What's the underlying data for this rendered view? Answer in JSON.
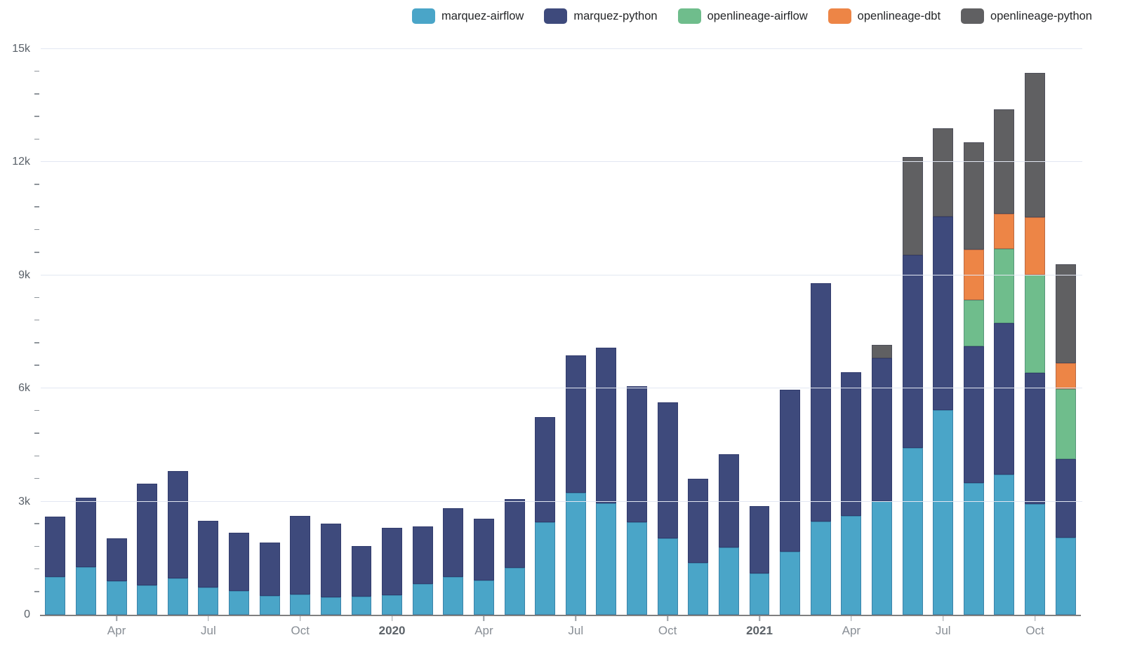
{
  "legend": {
    "position": "top-right",
    "items": [
      "marquez-airflow",
      "marquez-python",
      "openlineage-airflow",
      "openlineage-dbt",
      "openlineage-python"
    ]
  },
  "yaxis": {
    "labels": [
      "0",
      "3k",
      "6k",
      "9k",
      "12k",
      "15k"
    ],
    "values": [
      0,
      3000,
      6000,
      9000,
      12000,
      15000
    ],
    "max": 15000,
    "major_step": 3000,
    "minor_step": 600
  },
  "xaxis": {
    "ticks": [
      {
        "index": 2,
        "label": "Apr",
        "bold": false
      },
      {
        "index": 5,
        "label": "Jul",
        "bold": false
      },
      {
        "index": 8,
        "label": "Oct",
        "bold": false
      },
      {
        "index": 11,
        "label": "2020",
        "bold": true
      },
      {
        "index": 14,
        "label": "Apr",
        "bold": false
      },
      {
        "index": 17,
        "label": "Jul",
        "bold": false
      },
      {
        "index": 20,
        "label": "Oct",
        "bold": false
      },
      {
        "index": 23,
        "label": "2021",
        "bold": true
      },
      {
        "index": 26,
        "label": "Apr",
        "bold": false
      },
      {
        "index": 29,
        "label": "Jul",
        "bold": false
      },
      {
        "index": 32,
        "label": "Oct",
        "bold": false
      }
    ]
  },
  "chart_data": {
    "type": "bar",
    "stacked": true,
    "grid": "horizontal-major",
    "legend_position": "top-right",
    "ylim": [
      0,
      15000
    ],
    "categories": [
      "Feb 2019",
      "Mar 2019",
      "Apr 2019",
      "May 2019",
      "Jun 2019",
      "Jul 2019",
      "Aug 2019",
      "Sep 2019",
      "Oct 2019",
      "Nov 2019",
      "Dec 2019",
      "Jan 2020",
      "Feb 2020",
      "Mar 2020",
      "Apr 2020",
      "May 2020",
      "Jun 2020",
      "Jul 2020",
      "Aug 2020",
      "Sep 2020",
      "Oct 2020",
      "Nov 2020",
      "Dec 2020",
      "Jan 2021",
      "Feb 2021",
      "Mar 2021",
      "Apr 2021",
      "May 2021",
      "Jun 2021",
      "Jul 2021",
      "Aug 2021",
      "Sep 2021",
      "Oct 2021",
      "Nov 2021"
    ],
    "series": [
      {
        "name": "marquez-airflow",
        "color": "#4aa5c8",
        "values": [
          1000,
          1270,
          900,
          790,
          970,
          720,
          640,
          500,
          540,
          470,
          490,
          520,
          820,
          1000,
          910,
          1240,
          2450,
          3230,
          2950,
          2450,
          2030,
          1370,
          1790,
          1090,
          1680,
          2470,
          2630,
          3010,
          4420,
          5430,
          3490,
          3715,
          2940,
          2050
        ]
      },
      {
        "name": "marquez-python",
        "color": "#3e4a7c",
        "values": [
          1600,
          1830,
          1120,
          2690,
          2840,
          1770,
          1540,
          1420,
          2090,
          1940,
          1330,
          1790,
          1515,
          1825,
          1645,
          1830,
          2795,
          3640,
          4125,
          3615,
          3600,
          2230,
          2460,
          1790,
          4295,
          6325,
          3810,
          3800,
          5120,
          5135,
          3630,
          4025,
          3465,
          2075
        ]
      },
      {
        "name": "openlineage-airflow",
        "color": "#6fbd8c",
        "values": [
          0,
          0,
          0,
          0,
          0,
          0,
          0,
          0,
          0,
          0,
          0,
          0,
          0,
          0,
          0,
          0,
          0,
          0,
          0,
          0,
          0,
          0,
          0,
          0,
          0,
          0,
          0,
          0,
          0,
          0,
          1225,
          1970,
          2610,
          1865
        ]
      },
      {
        "name": "openlineage-dbt",
        "color": "#ed8546",
        "values": [
          0,
          0,
          0,
          0,
          0,
          0,
          0,
          0,
          0,
          0,
          0,
          0,
          0,
          0,
          0,
          0,
          0,
          0,
          0,
          0,
          0,
          0,
          0,
          0,
          0,
          0,
          0,
          0,
          0,
          0,
          1345,
          930,
          1530,
          690
        ]
      },
      {
        "name": "openlineage-python",
        "color": "#606062",
        "values": [
          0,
          0,
          0,
          0,
          0,
          0,
          0,
          0,
          0,
          0,
          0,
          0,
          0,
          0,
          0,
          0,
          0,
          0,
          0,
          0,
          0,
          0,
          0,
          0,
          0,
          0,
          0,
          340,
          2590,
          2335,
          2840,
          2760,
          3830,
          2615
        ]
      }
    ]
  }
}
